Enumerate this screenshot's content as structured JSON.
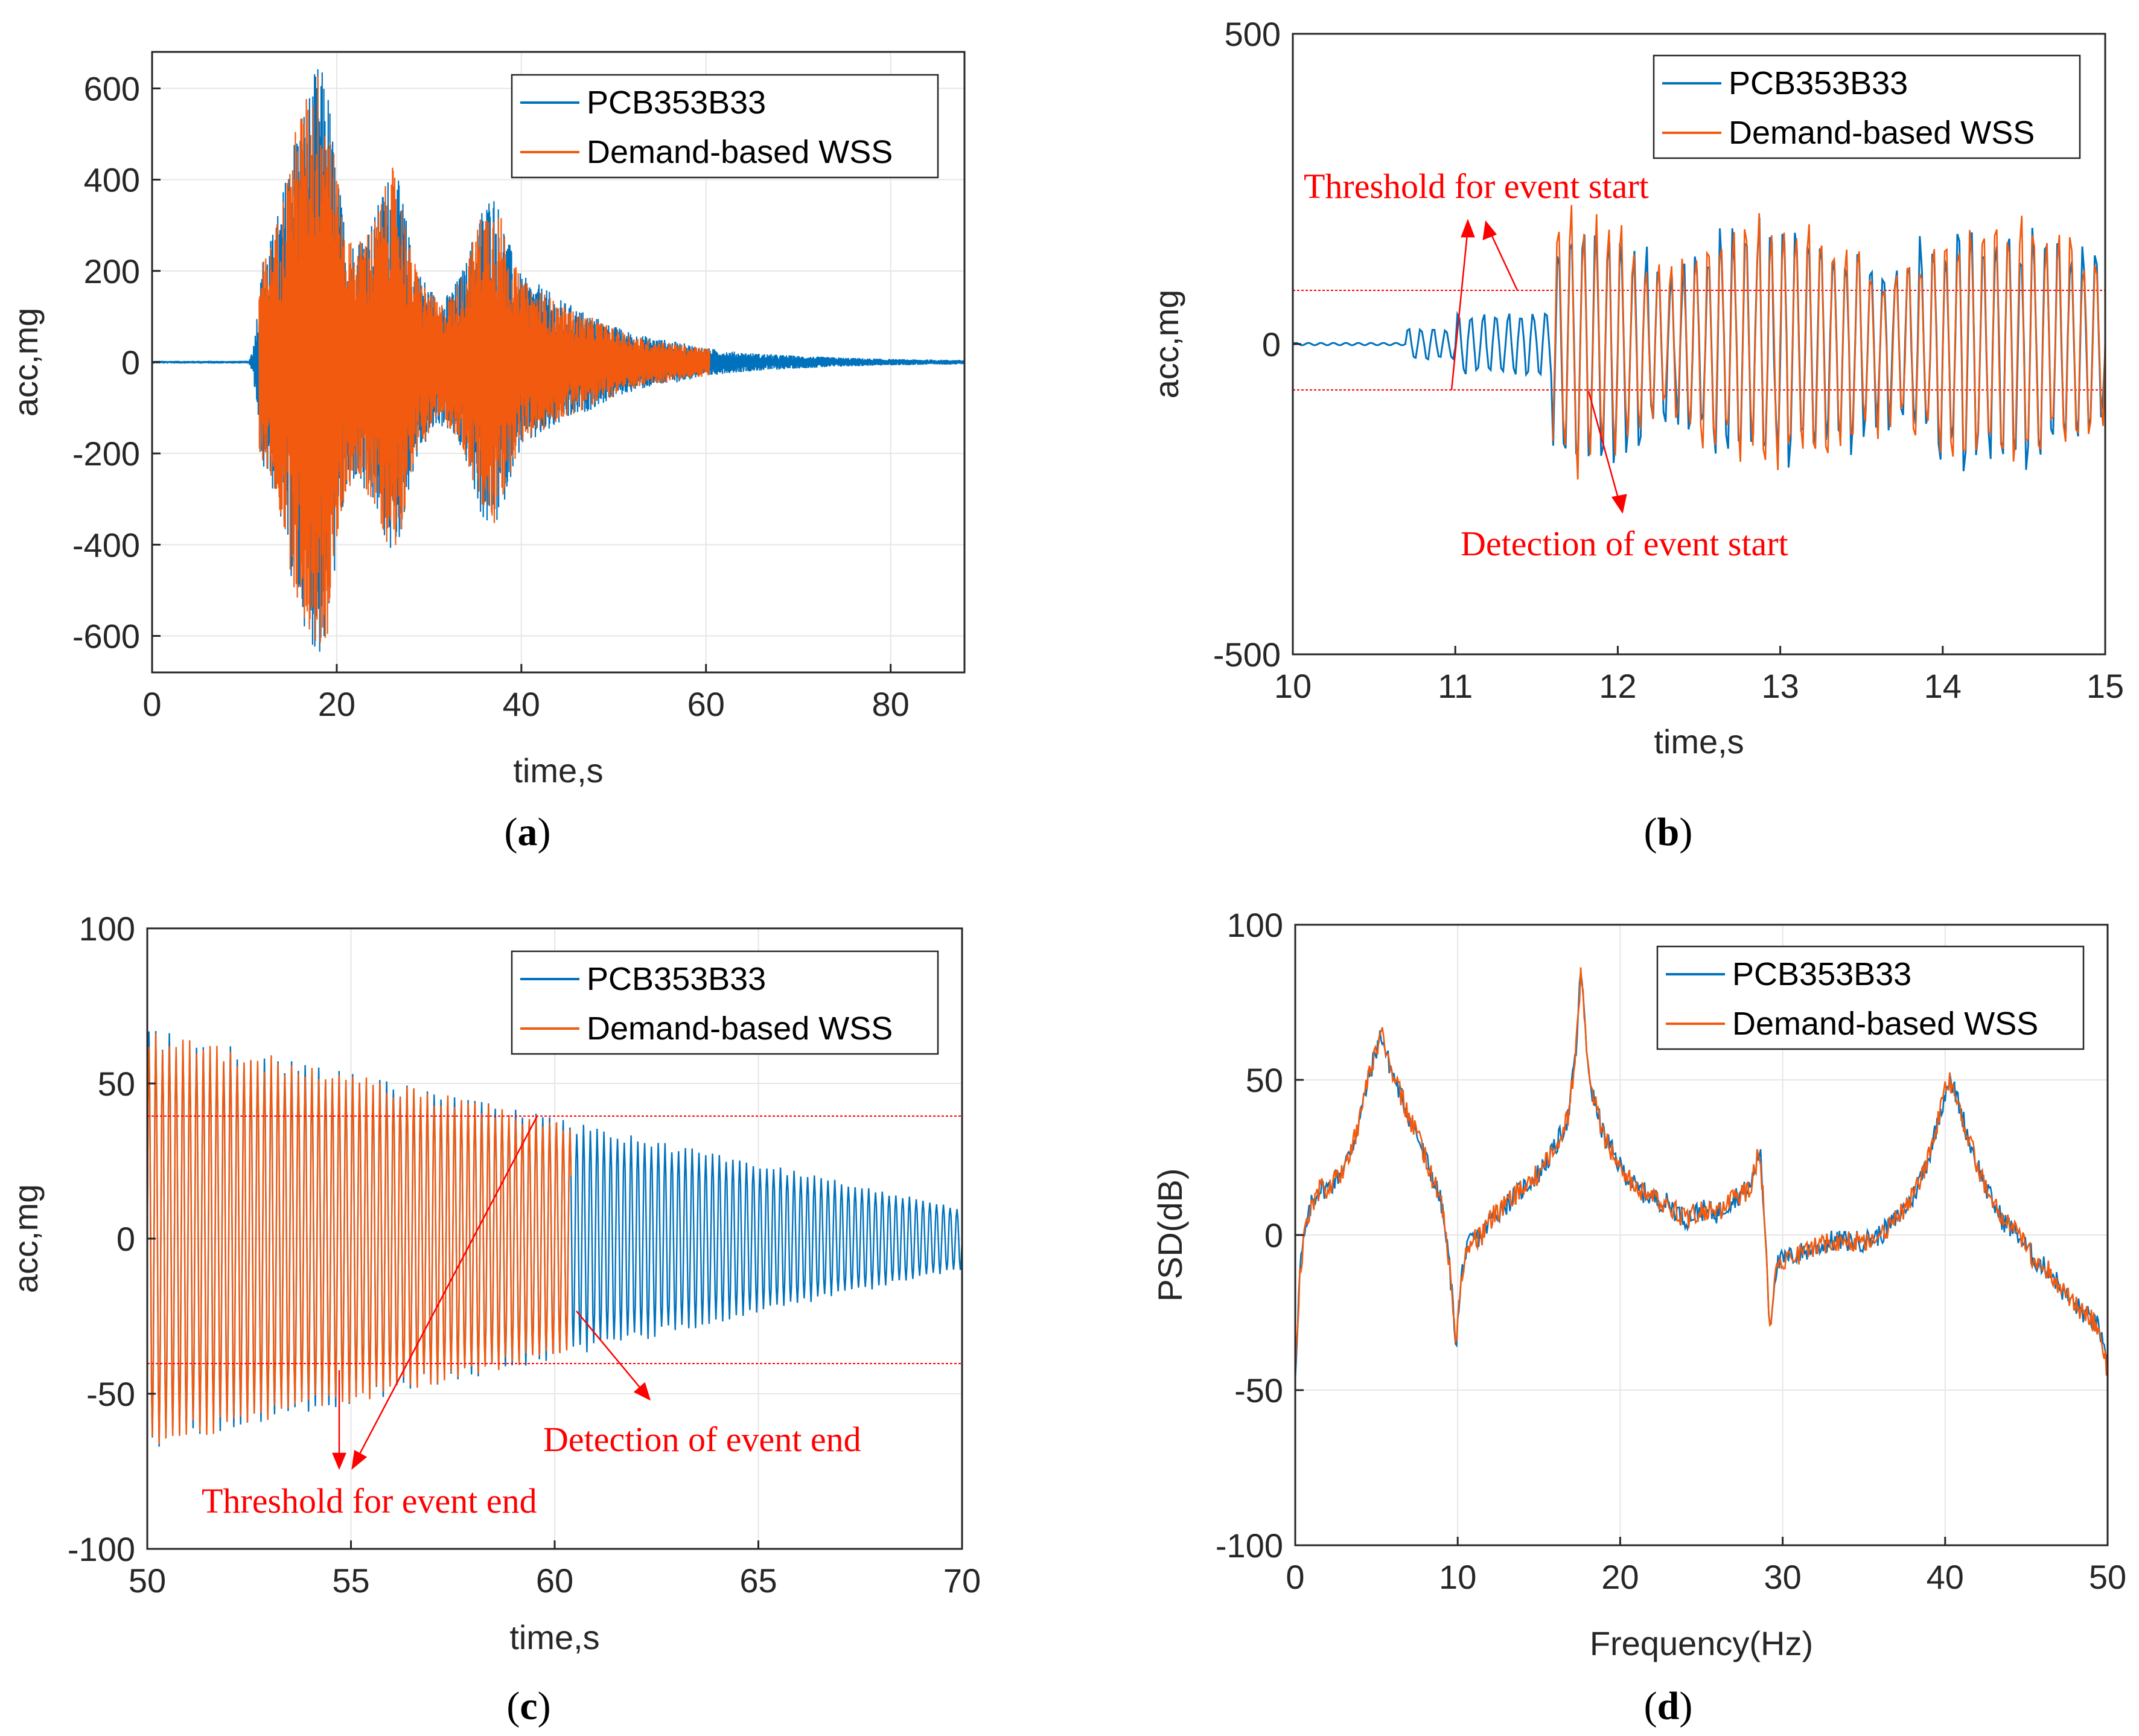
{
  "colors": {
    "blue": "#0072BD",
    "orange": "#F25A0F",
    "red": "#FF0000",
    "grid": "#E6E6E6"
  },
  "chart_data": [
    {
      "id": "a",
      "caption_letter": "a",
      "type": "line",
      "xlabel": "time,s",
      "ylabel": "acc,mg",
      "xlim": [
        0,
        88
      ],
      "ylim": [
        -680,
        680
      ],
      "xticks": [
        0,
        20,
        40,
        60,
        80
      ],
      "yticks": [
        -600,
        -400,
        -200,
        0,
        200,
        400,
        600
      ],
      "grid": true,
      "legend_position": "top-right",
      "series": [
        {
          "name": "PCB353B33",
          "color": "#0072BD",
          "x_range": [
            0,
            88
          ],
          "envelope": [
            [
              0,
              3
            ],
            [
              10.5,
              3
            ],
            [
              11,
              40
            ],
            [
              12,
              230
            ],
            [
              13,
              280
            ],
            [
              14,
              360
            ],
            [
              15,
              470
            ],
            [
              16,
              560
            ],
            [
              17,
              600
            ],
            [
              18,
              660
            ],
            [
              19,
              620
            ],
            [
              20,
              420
            ],
            [
              21,
              300
            ],
            [
              22,
              260
            ],
            [
              23,
              300
            ],
            [
              24,
              320
            ],
            [
              25,
              380
            ],
            [
              26,
              440
            ],
            [
              27,
              380
            ],
            [
              28,
              260
            ],
            [
              29,
              200
            ],
            [
              30,
              170
            ],
            [
              31,
              140
            ],
            [
              32,
              150
            ],
            [
              33,
              180
            ],
            [
              34,
              220
            ],
            [
              35,
              300
            ],
            [
              36,
              360
            ],
            [
              37,
              380
            ],
            [
              38,
              320
            ],
            [
              39,
              240
            ],
            [
              40,
              190
            ],
            [
              42,
              170
            ],
            [
              44,
              140
            ],
            [
              46,
              120
            ],
            [
              48,
              100
            ],
            [
              50,
              80
            ],
            [
              52,
              65
            ],
            [
              54,
              55
            ],
            [
              56,
              48
            ],
            [
              58,
              40
            ],
            [
              60,
              32
            ],
            [
              62,
              25
            ],
            [
              65,
              20
            ],
            [
              70,
              14
            ],
            [
              75,
              10
            ],
            [
              80,
              7
            ],
            [
              88,
              5
            ]
          ]
        },
        {
          "name": "Demand-based WSS",
          "color": "#F25A0F",
          "x_range": [
            11.6,
            60.4
          ],
          "envelope": [
            [
              11.6,
              200
            ],
            [
              12,
              220
            ],
            [
              13,
              270
            ],
            [
              14,
              350
            ],
            [
              15,
              460
            ],
            [
              16,
              560
            ],
            [
              17,
              600
            ],
            [
              18,
              650
            ],
            [
              19,
              610
            ],
            [
              20,
              410
            ],
            [
              21,
              290
            ],
            [
              22,
              250
            ],
            [
              23,
              290
            ],
            [
              24,
              310
            ],
            [
              25,
              370
            ],
            [
              26,
              430
            ],
            [
              27,
              370
            ],
            [
              28,
              250
            ],
            [
              29,
              190
            ],
            [
              30,
              160
            ],
            [
              31,
              130
            ],
            [
              32,
              140
            ],
            [
              33,
              170
            ],
            [
              34,
              210
            ],
            [
              35,
              290
            ],
            [
              36,
              350
            ],
            [
              37,
              370
            ],
            [
              38,
              310
            ],
            [
              39,
              230
            ],
            [
              40,
              180
            ],
            [
              42,
              160
            ],
            [
              44,
              130
            ],
            [
              46,
              110
            ],
            [
              48,
              95
            ],
            [
              50,
              75
            ],
            [
              52,
              60
            ],
            [
              54,
              50
            ],
            [
              56,
              44
            ],
            [
              58,
              36
            ],
            [
              60.4,
              30
            ]
          ]
        }
      ]
    },
    {
      "id": "b",
      "caption_letter": "b",
      "type": "line",
      "xlabel": "time,s",
      "ylabel": "acc,mg",
      "xlim": [
        10,
        15
      ],
      "ylim": [
        -500,
        500
      ],
      "xticks": [
        10,
        11,
        12,
        13,
        14,
        15
      ],
      "yticks": [
        -500,
        0,
        500
      ],
      "grid": false,
      "legend_position": "top-right",
      "thresholds": [
        80,
        -80
      ],
      "series": [
        {
          "name": "PCB353B33",
          "color": "#0072BD",
          "x_range": [
            10,
            15
          ]
        },
        {
          "name": "Demand-based WSS",
          "color": "#F25A0F",
          "x_range": [
            11.6,
            15
          ]
        }
      ],
      "annotations": [
        {
          "text": "Threshold  for  event  start"
        },
        {
          "text": "Detection  of  event  start"
        }
      ]
    },
    {
      "id": "c",
      "caption_letter": "c",
      "type": "line",
      "xlabel": "time,s",
      "ylabel": "acc,mg",
      "xlim": [
        50,
        70
      ],
      "ylim": [
        -100,
        100
      ],
      "xticks": [
        50,
        55,
        60,
        65,
        70
      ],
      "yticks": [
        -100,
        -50,
        0,
        50,
        100
      ],
      "grid": true,
      "legend_position": "top-right",
      "thresholds": [
        40,
        -40
      ],
      "series": [
        {
          "name": "PCB353B33",
          "color": "#0072BD",
          "x_range": [
            50,
            70
          ]
        },
        {
          "name": "Demand-based WSS",
          "color": "#F25A0F",
          "x_range": [
            50,
            60.4
          ]
        }
      ],
      "annotations": [
        {
          "text": "Detection  of  event  end"
        },
        {
          "text": "Threshold  for  event  end"
        }
      ]
    },
    {
      "id": "d",
      "caption_letter": "d",
      "type": "line",
      "xlabel": "Frequency(Hz)",
      "ylabel": "PSD(dB)",
      "xlim": [
        0,
        50
      ],
      "ylim": [
        -100,
        100
      ],
      "xticks": [
        0,
        10,
        20,
        30,
        40,
        50
      ],
      "yticks": [
        -100,
        -50,
        0,
        50,
        100
      ],
      "grid": true,
      "legend_position": "top-right",
      "series": [
        {
          "name": "PCB353B33",
          "color": "#0072BD"
        },
        {
          "name": "Demand-based WSS",
          "color": "#F25A0F"
        }
      ],
      "psd_points": [
        [
          0,
          -45
        ],
        [
          0.3,
          -10
        ],
        [
          0.6,
          0
        ],
        [
          1,
          10
        ],
        [
          1.5,
          15
        ],
        [
          2,
          15
        ],
        [
          2.5,
          18
        ],
        [
          3,
          22
        ],
        [
          3.5,
          28
        ],
        [
          4,
          38
        ],
        [
          4.5,
          50
        ],
        [
          5,
          60
        ],
        [
          5.3,
          65
        ],
        [
          5.6,
          58
        ],
        [
          6,
          52
        ],
        [
          6.5,
          45
        ],
        [
          7,
          38
        ],
        [
          7.5,
          32
        ],
        [
          8,
          25
        ],
        [
          8.5,
          18
        ],
        [
          9,
          10
        ],
        [
          9.5,
          -10
        ],
        [
          9.9,
          -35
        ],
        [
          10.3,
          -10
        ],
        [
          10.8,
          -2
        ],
        [
          11.5,
          0
        ],
        [
          12,
          5
        ],
        [
          13,
          10
        ],
        [
          14,
          15
        ],
        [
          15,
          20
        ],
        [
          16,
          28
        ],
        [
          16.8,
          38
        ],
        [
          17.3,
          60
        ],
        [
          17.6,
          88
        ],
        [
          17.9,
          60
        ],
        [
          18.3,
          45
        ],
        [
          19,
          32
        ],
        [
          20,
          22
        ],
        [
          21,
          15
        ],
        [
          22,
          12
        ],
        [
          23,
          10
        ],
        [
          24,
          5
        ],
        [
          25,
          8
        ],
        [
          26,
          7
        ],
        [
          27,
          12
        ],
        [
          28,
          15
        ],
        [
          28.6,
          28
        ],
        [
          29,
          -5
        ],
        [
          29.2,
          -30
        ],
        [
          29.6,
          -10
        ],
        [
          30,
          -8
        ],
        [
          31,
          -6
        ],
        [
          32,
          -4
        ],
        [
          33,
          -2
        ],
        [
          34,
          -2
        ],
        [
          35,
          -2
        ],
        [
          36,
          0
        ],
        [
          37,
          5
        ],
        [
          38,
          12
        ],
        [
          39,
          25
        ],
        [
          39.7,
          40
        ],
        [
          40.2,
          50
        ],
        [
          40.7,
          45
        ],
        [
          41.5,
          30
        ],
        [
          42.5,
          15
        ],
        [
          43.5,
          5
        ],
        [
          44.5,
          0
        ],
        [
          45.5,
          -8
        ],
        [
          46.5,
          -12
        ],
        [
          47.5,
          -20
        ],
        [
          48.5,
          -25
        ],
        [
          49.5,
          -30
        ],
        [
          50,
          -45
        ]
      ]
    }
  ]
}
